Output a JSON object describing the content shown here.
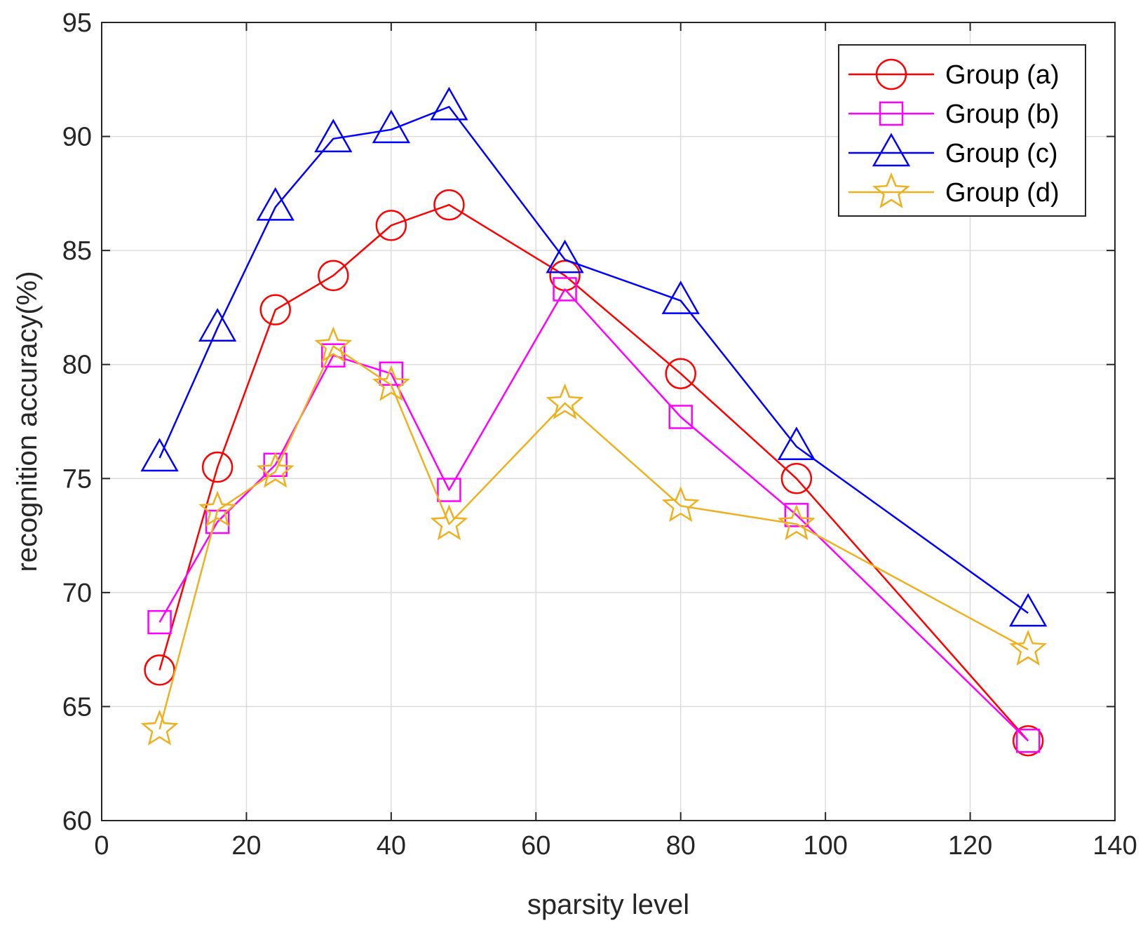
{
  "chart_data": {
    "type": "line",
    "xlabel": "sparsity level",
    "ylabel": "recognition accuracy(%)",
    "xlim": [
      0,
      140
    ],
    "ylim": [
      60,
      95
    ],
    "x_ticks": [
      0,
      20,
      40,
      60,
      80,
      100,
      120,
      140
    ],
    "y_ticks": [
      60,
      65,
      70,
      75,
      80,
      85,
      90,
      95
    ],
    "grid": true,
    "legend_position": "top-right",
    "x": [
      8,
      16,
      24,
      32,
      40,
      48,
      64,
      80,
      96,
      128
    ],
    "series": [
      {
        "name": "Group (a)",
        "color": "#ff0000",
        "marker": "circle",
        "values": [
          66.6,
          75.5,
          82.4,
          83.9,
          86.1,
          87.0,
          83.9,
          79.6,
          75.0,
          63.5
        ]
      },
      {
        "name": "Group (b)",
        "color": "#ff00ff",
        "marker": "square",
        "values": [
          68.7,
          73.1,
          75.6,
          80.4,
          79.6,
          74.5,
          83.3,
          77.7,
          73.4,
          63.5
        ]
      },
      {
        "name": "Group (c)",
        "color": "#0000ff",
        "marker": "triangle",
        "values": [
          75.9,
          81.6,
          86.9,
          89.9,
          90.3,
          91.3,
          84.6,
          82.8,
          76.4,
          69.1
        ]
      },
      {
        "name": "Group (d)",
        "color": "#edb120",
        "marker": "star",
        "values": [
          64.0,
          73.6,
          75.3,
          80.8,
          79.1,
          73.0,
          78.3,
          73.8,
          73.0,
          67.5
        ]
      }
    ]
  }
}
